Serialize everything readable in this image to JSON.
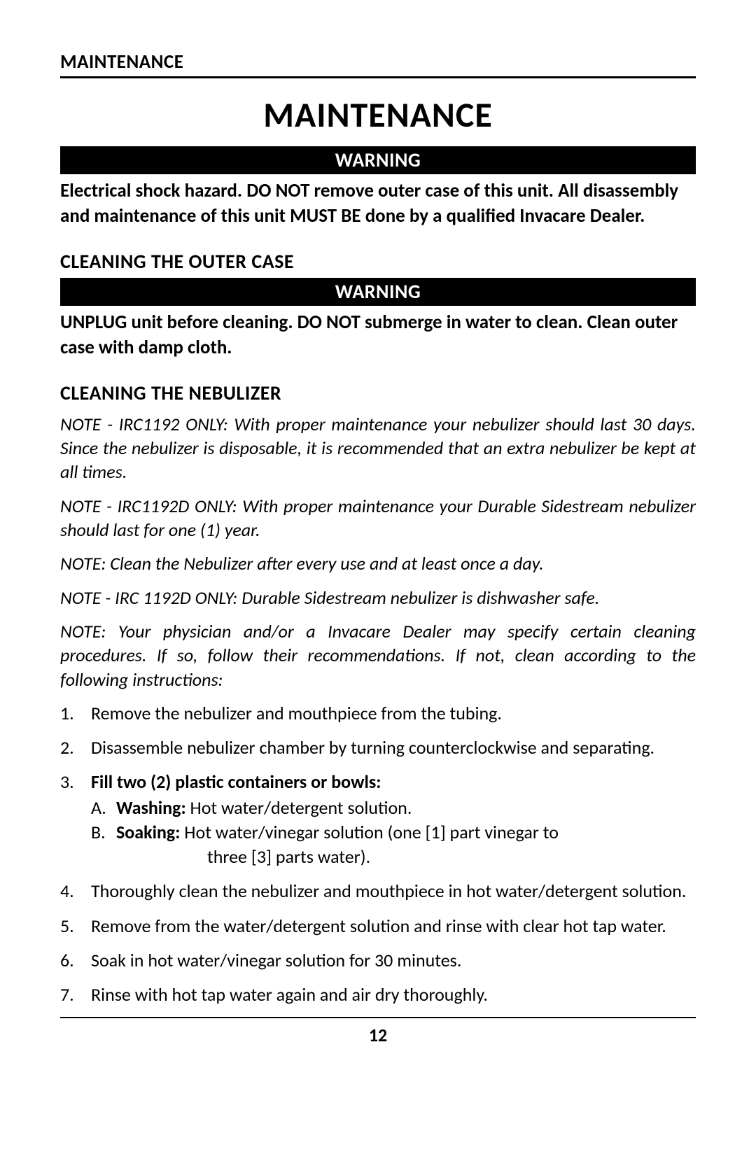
{
  "header": {
    "label": "MAINTENANCE"
  },
  "title": "MAINTENANCE",
  "warning1": {
    "bar": "WARNING",
    "text": "Electrical shock hazard. DO NOT remove outer case of this unit. All disassembly and maintenance of this unit MUST BE done by a qualified Invacare Dealer."
  },
  "section_outer": {
    "heading": "CLEANING THE OUTER CASE",
    "warning_bar": "WARNING",
    "warning_text": "UNPLUG unit before cleaning. DO NOT submerge in water to clean. Clean outer case with damp cloth."
  },
  "section_neb": {
    "heading": "CLEANING THE NEBULIZER",
    "note1": "NOTE - IRC1192 ONLY: With proper maintenance your nebulizer should last 30 days. Since the nebulizer is disposable, it is recommended that an extra nebulizer be kept at all times.",
    "note2": "NOTE - IRC1192D ONLY: With proper maintenance your Durable Sidestream nebulizer should last for one (1) year.",
    "note3": "NOTE: Clean the Nebulizer after every use and at least once a day.",
    "note4": "NOTE - IRC 1192D ONLY: Durable Sidestream nebulizer is dishwasher safe.",
    "note5": "NOTE: Your physician and/or a Invacare Dealer may specify certain cleaning procedures. If so, follow their recommendations. If not, clean according to the following instructions:"
  },
  "steps": {
    "s1": {
      "num": "1.",
      "text": "Remove the nebulizer and mouthpiece from the tubing."
    },
    "s2": {
      "num": "2.",
      "text": "Disassemble nebulizer chamber by turning counterclockwise and separating."
    },
    "s3": {
      "num": "3.",
      "lead": "Fill two (2) plastic containers or bowls:",
      "a_letter": "A.",
      "a_label": "Washing:",
      "a_text": " Hot water/detergent solution.",
      "b_letter": "B.",
      "b_label": "Soaking:",
      "b_text": " Hot water/vinegar solution (one [1] part vinegar to",
      "b_cont": "three [3] parts water)."
    },
    "s4": {
      "num": "4.",
      "text": "Thoroughly clean the nebulizer and mouthpiece in hot water/detergent solution."
    },
    "s5": {
      "num": "5.",
      "text": "Remove from the water/detergent solution and rinse with clear hot tap water."
    },
    "s6": {
      "num": "6.",
      "text": "Soak in hot water/vinegar solution for 30 minutes."
    },
    "s7": {
      "num": "7.",
      "text": "Rinse with hot tap water again and air dry thoroughly."
    }
  },
  "page_number": "12",
  "colors": {
    "text": "#000000",
    "background": "#ffffff",
    "warning_bg": "#000000",
    "warning_fg": "#ffffff"
  },
  "typography": {
    "header_label_size": 27,
    "title_size": 50,
    "warning_bar_size": 28,
    "body_size": 26,
    "section_heading_size": 28
  }
}
